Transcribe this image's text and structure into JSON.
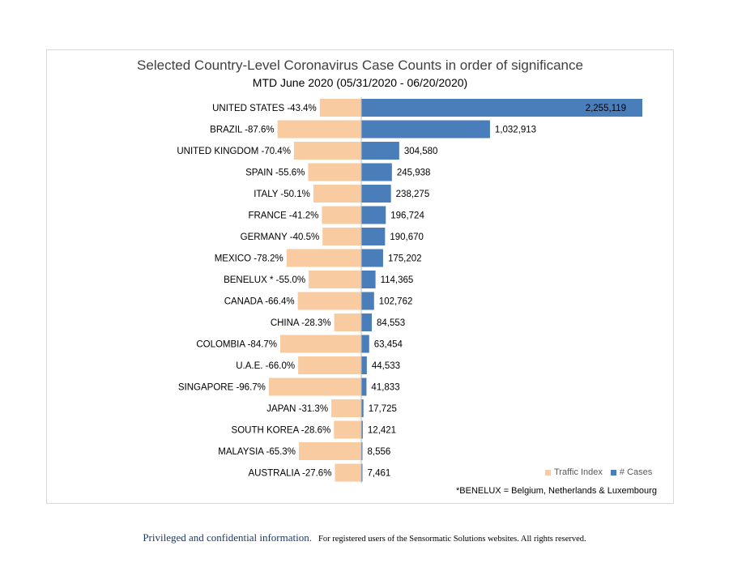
{
  "chart_data": {
    "type": "bar",
    "orientation": "horizontal-diverging",
    "title": "Selected Country-Level Coronavirus Case Counts in order of significance",
    "subtitle": "MTD June 2020 (05/31/2020 - 06/20/2020)",
    "categories": [
      "UNITED STATES -43.4%",
      "BRAZIL -87.6%",
      "UNITED KINGDOM -70.4%",
      "SPAIN -55.6%",
      "ITALY -50.1%",
      "FRANCE -41.2%",
      "GERMANY -40.5%",
      "MEXICO -78.2%",
      "BENELUX * -55.0%",
      "CANADA -66.4%",
      "CHINA -28.3%",
      "COLOMBIA -84.7%",
      "U.A.E. -66.0%",
      "SINGAPORE -96.7%",
      "JAPAN -31.3%",
      "SOUTH KOREA -28.6%",
      "MALAYSIA -65.3%",
      "AUSTRALIA -27.6%"
    ],
    "series": [
      {
        "name": "Traffic Index",
        "color": "#f8cba0",
        "values": [
          -43.4,
          -87.6,
          -70.4,
          -55.6,
          -50.1,
          -41.2,
          -40.5,
          -78.2,
          -55.0,
          -66.4,
          -28.3,
          -84.7,
          -66.0,
          -96.7,
          -31.3,
          -28.6,
          -65.3,
          -27.6
        ]
      },
      {
        "name": "# Cases",
        "color": "#4a7ebb",
        "values": [
          2255119,
          1032913,
          304580,
          245938,
          238275,
          196724,
          190670,
          175202,
          114365,
          102762,
          84553,
          63454,
          44533,
          41833,
          17725,
          12421,
          8556,
          7461
        ],
        "labels": [
          "2,255,119",
          "1,032,913",
          "304,580",
          "245,938",
          "238,275",
          "196,724",
          "190,670",
          "175,202",
          "114,365",
          "102,762",
          "84,553",
          "63,454",
          "44,533",
          "41,833",
          "17,725",
          "12,421",
          "8,556",
          "7,461"
        ]
      }
    ],
    "legend_position": "bottom-right",
    "footnote": "*BENELUX = Belgium, Netherlands & Luxembourg"
  },
  "legend": {
    "traffic_label": "Traffic Index",
    "cases_label": "# Cases"
  },
  "footer": {
    "primary": "Privileged and confidential information.",
    "secondary": "For registered users of the Sensormatic Solutions websites. All rights reserved."
  }
}
